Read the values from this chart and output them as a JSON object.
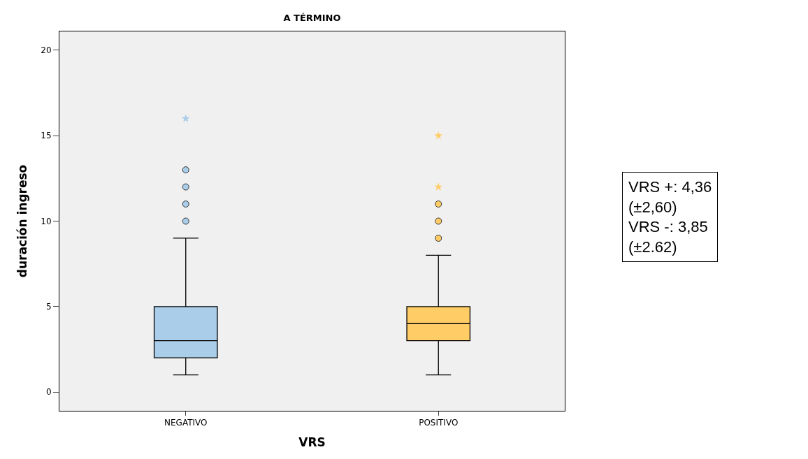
{
  "chart_data": {
    "type": "box",
    "title": "A TÉRMINO",
    "xlabel": "VRS",
    "ylabel": "duración ingreso",
    "categories": [
      "NEGATIVO",
      "POSITIVO"
    ],
    "colors": [
      "#aacde9",
      "#ffcc66"
    ],
    "boxes": [
      {
        "low": 1,
        "q1": 2,
        "median": 3,
        "q3": 5,
        "high": 9,
        "outliers": [
          10,
          11,
          12,
          13,
          16
        ]
      },
      {
        "low": 1,
        "q1": 3,
        "median": 4,
        "q3": 5,
        "high": 8,
        "outliers": [
          9,
          10,
          11,
          12,
          15
        ]
      }
    ],
    "ylim": [
      -1.1,
      21.1
    ],
    "yticks": [
      0,
      5,
      10,
      15,
      20
    ],
    "annotations": [
      "VRS +: 4,36\n(±2,60)\nVRS -: 3,85\n(±2.62)"
    ]
  }
}
